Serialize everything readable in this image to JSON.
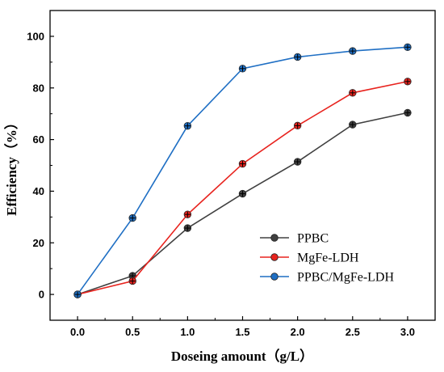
{
  "chart_data": {
    "type": "line",
    "title": "",
    "xlabel": "Doseing amount（g/L）",
    "ylabel": "Efficiency（%）",
    "x": [
      0.0,
      0.5,
      1.0,
      1.5,
      2.0,
      2.5,
      3.0
    ],
    "x_tick_labels": [
      "0.0",
      "0.5",
      "1.0",
      "1.5",
      "2.0",
      "2.5",
      "3.0"
    ],
    "y_tick_labels": [
      "0",
      "20",
      "40",
      "60",
      "80",
      "100"
    ],
    "xlim": [
      -0.25,
      3.25
    ],
    "ylim": [
      -10,
      110
    ],
    "grid": false,
    "legend_position": "bottom-right",
    "series": [
      {
        "name": "PPBC",
        "color": "#404040",
        "values": [
          0,
          7.2,
          25.7,
          39.0,
          51.4,
          65.8,
          70.4
        ]
      },
      {
        "name": "MgFe-LDH",
        "color": "#e8231e",
        "values": [
          0,
          5.2,
          31.0,
          50.6,
          65.4,
          78.1,
          82.5
        ]
      },
      {
        "name": "PPBC/MgFe-LDH",
        "color": "#1f6fc4",
        "values": [
          0,
          29.6,
          65.3,
          87.5,
          92.0,
          94.3,
          95.8
        ]
      }
    ]
  }
}
